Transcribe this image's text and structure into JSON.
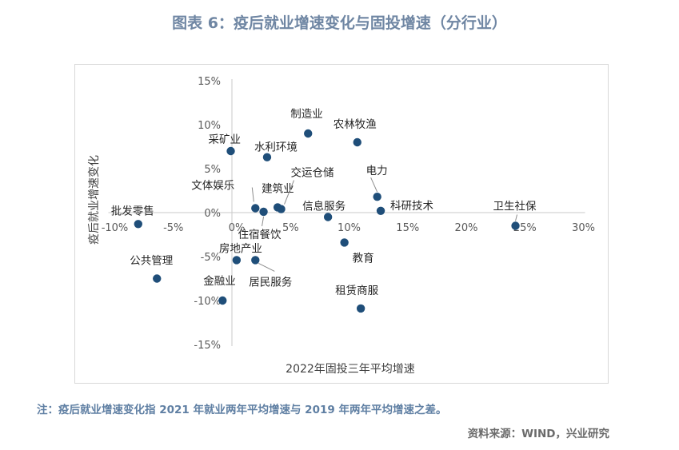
{
  "title": "图表 6：疫后就业增速变化与固投增速（分行业）",
  "note": "注：疫后就业增速变化指 2021 年就业两年平均增速与 2019 年两年平均增速之差。",
  "source": "资料来源：WIND，兴业研究",
  "chart_data": {
    "type": "scatter",
    "xlabel": "2022年固投三年平均增速",
    "ylabel": "疫后就业增速变化",
    "xlim": [
      -10,
      30
    ],
    "ylim": [
      -15,
      15
    ],
    "x_ticks": [
      -10,
      -5,
      0,
      5,
      10,
      15,
      20,
      25,
      30
    ],
    "y_ticks": [
      -15,
      -10,
      -5,
      0,
      5,
      10,
      15
    ],
    "x_tick_labels": [
      "-10%",
      "-5%",
      "0%",
      "5%",
      "10%",
      "15%",
      "20%",
      "25%",
      "30%"
    ],
    "y_tick_labels": [
      "-15%",
      "-10%",
      "-5%",
      "0%",
      "5%",
      "10%",
      "15%"
    ],
    "marker_color": "#1f4e79",
    "points": [
      {
        "label": "批发零售",
        "x": -8.0,
        "y": -1.3
      },
      {
        "label": "公共管理",
        "x": -6.4,
        "y": -7.5
      },
      {
        "label": "采矿业",
        "x": -0.1,
        "y": 7.0
      },
      {
        "label": "文体娱乐",
        "x": 2.0,
        "y": 0.5
      },
      {
        "label": "住宿餐饮",
        "x": 2.7,
        "y": 0.1
      },
      {
        "label": "房地产业",
        "x": 0.4,
        "y": -5.4
      },
      {
        "label": "居民服务",
        "x": 2.0,
        "y": -5.4
      },
      {
        "label": "金融业",
        "x": -0.8,
        "y": -10.0
      },
      {
        "label": "水利环境",
        "x": 3.0,
        "y": 6.3
      },
      {
        "label": "建筑业",
        "x": 3.9,
        "y": 0.6
      },
      {
        "label": "交运仓储",
        "x": 4.2,
        "y": 0.4
      },
      {
        "label": "制造业",
        "x": 6.5,
        "y": 9.0
      },
      {
        "label": "信息服务",
        "x": 8.2,
        "y": -0.5
      },
      {
        "label": "教育",
        "x": 9.6,
        "y": -3.4
      },
      {
        "label": "农林牧渔",
        "x": 10.7,
        "y": 8.0
      },
      {
        "label": "租赁商服",
        "x": 11.0,
        "y": -10.9
      },
      {
        "label": "电力",
        "x": 12.4,
        "y": 1.8
      },
      {
        "label": "科研技术",
        "x": 12.7,
        "y": 0.2
      },
      {
        "label": "卫生社保",
        "x": 24.2,
        "y": -1.5
      }
    ]
  }
}
